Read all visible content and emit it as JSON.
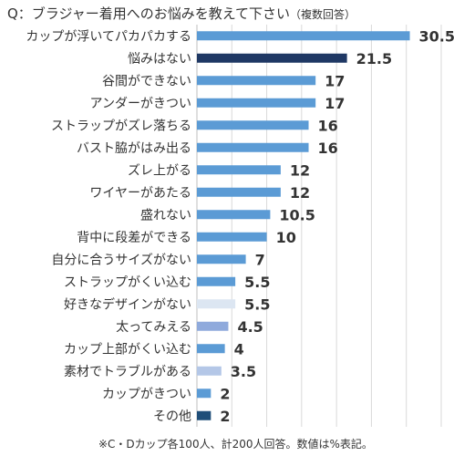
{
  "title": "Q：ブラジャー着用へのお悩みを教えて下さい",
  "subtitle": "（複数回答）",
  "footnote": "※C・Dカップ各100人、計200人回答。数値は%表記。",
  "chart_data": {
    "type": "bar",
    "orientation": "horizontal",
    "title": "Q：ブラジャー着用へのお悩みを教えて下さい（複数回答）",
    "xlabel": "",
    "ylabel": "",
    "xlim": [
      0,
      35
    ],
    "grid": true,
    "categories": [
      "カップが浮いてパカパカする",
      "悩みはない",
      "谷間ができない",
      "アンダーがきつい",
      "ストラップがズレ落ちる",
      "バスト脇がはみ出る",
      "ズレ上がる",
      "ワイヤーがあたる",
      "盛れない",
      "背中に段差ができる",
      "自分に合うサイズがない",
      "ストラップがくい込む",
      "好きなデザインがない",
      "太ってみえる",
      "カップ上部がくい込む",
      "素材でトラブルがある",
      "カップがきつい",
      "その他"
    ],
    "values": [
      30.5,
      21.5,
      17,
      17,
      16,
      16,
      12,
      12,
      10.5,
      10,
      7,
      5.5,
      5.5,
      4.5,
      4,
      3.5,
      2,
      2
    ],
    "value_labels": [
      "30.5",
      "21.5",
      "17",
      "17",
      "16",
      "16",
      "12",
      "12",
      "10.5",
      "10",
      "7",
      "5.5",
      "5.5",
      "4.5",
      "4",
      "3.5",
      "2",
      "2"
    ],
    "colors": [
      "#5b9bd5",
      "#1f3864",
      "#5b9bd5",
      "#5b9bd5",
      "#5b9bd5",
      "#5b9bd5",
      "#5b9bd5",
      "#5b9bd5",
      "#5b9bd5",
      "#5b9bd5",
      "#5b9bd5",
      "#5b9bd5",
      "#dce6f2",
      "#8faadc",
      "#5b9bd5",
      "#b4c7e7",
      "#5b9bd5",
      "#1f4e79"
    ]
  }
}
